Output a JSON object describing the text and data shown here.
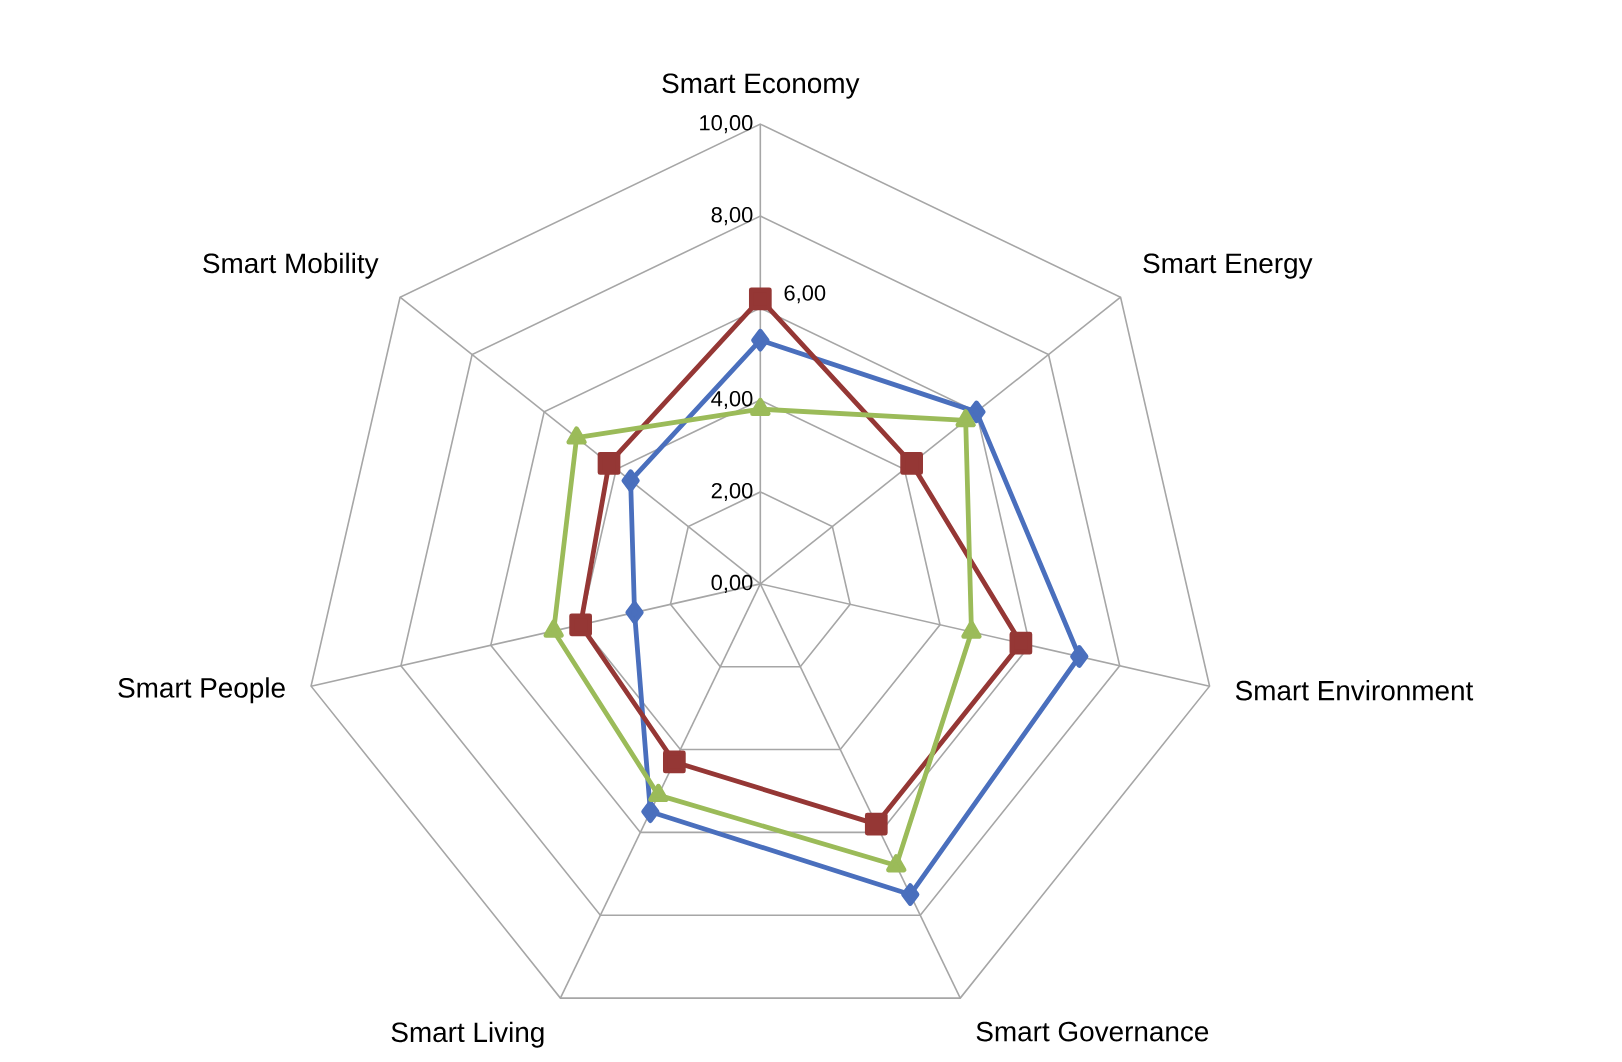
{
  "chart_data": {
    "type": "radar",
    "categories": [
      "Smart Economy",
      "Smart Energy",
      "Smart Environment",
      "Smart Governance",
      "Smart Living",
      "Smart People",
      "Smart Mobility"
    ],
    "series": [
      {
        "color": "#4a6fbd",
        "marker": "diamond",
        "values": [
          5.3,
          6.0,
          7.1,
          7.5,
          5.5,
          2.8,
          3.6
        ]
      },
      {
        "color": "#953735",
        "marker": "square",
        "values": [
          6.2,
          4.2,
          5.8,
          5.8,
          4.3,
          4.0,
          4.2
        ]
      },
      {
        "color": "#9bbb59",
        "marker": "triangle",
        "values": [
          3.8,
          5.7,
          4.7,
          6.8,
          5.1,
          4.6,
          5.1
        ]
      }
    ],
    "ylim": [
      0,
      10
    ],
    "yticks": [
      {
        "value": 0,
        "label": "0,00"
      },
      {
        "value": 2,
        "label": "2,00"
      },
      {
        "value": 4,
        "label": "4,00"
      },
      {
        "value": 6,
        "label": "6,00"
      },
      {
        "value": 8,
        "label": "8,00"
      },
      {
        "value": 10,
        "label": "10,00"
      }
    ],
    "grid": true,
    "line_style": "solid"
  }
}
